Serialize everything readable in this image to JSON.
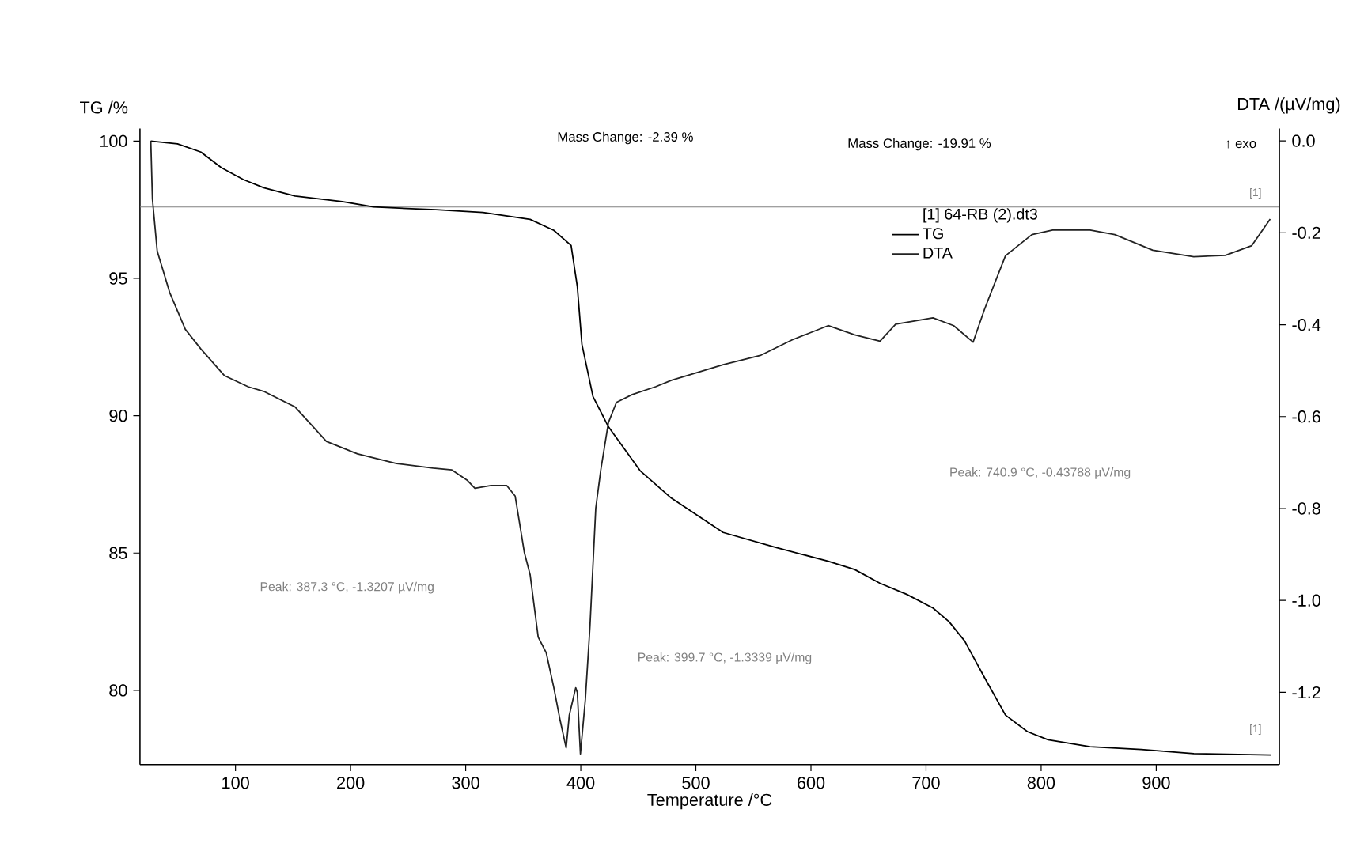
{
  "chart_data": {
    "type": "line",
    "xlabel": "Temperature /°C",
    "ylabel": "TG /%",
    "y2label": "DTA /(µV/mg)",
    "legend_title": "[1] 64-RB (2).dt3",
    "xlim": [
      17,
      1007
    ],
    "ylim": [
      77.3,
      100.46
    ],
    "y2lim": [
      -1.357,
      0.027
    ],
    "xticks": [
      100,
      200,
      300,
      400,
      500,
      600,
      700,
      800,
      900
    ],
    "yticks": [
      80,
      85,
      90,
      95,
      100
    ],
    "y2ticks": [
      {
        "value": 0,
        "label": "0.0"
      },
      {
        "value": -0.2,
        "label": "-0.2"
      },
      {
        "value": -0.4,
        "label": "-0.4"
      },
      {
        "value": -0.6,
        "label": "-0.6"
      },
      {
        "value": -0.8,
        "label": "-0.8"
      },
      {
        "value": -1.0,
        "label": "-1.0"
      },
      {
        "value": -1.2,
        "label": "-1.2"
      }
    ],
    "series": [
      {
        "name": "TG",
        "color": "#000000",
        "x": [
          26.4,
          49.6,
          70,
          87.7,
          106.8,
          124.5,
          151.8,
          192.6,
          220,
          274,
          315,
          356,
          376.6,
          391.6,
          397,
          401,
          410.6,
          424,
          451.5,
          478.7,
          523.7,
          570,
          615,
          638,
          660,
          683,
          706,
          720,
          733.5,
          751,
          769,
          788,
          806,
          842.5,
          887,
          932.6,
          1000
        ],
        "values": [
          100,
          99.9,
          99.6,
          99.03,
          98.6,
          98.3,
          98.0,
          97.8,
          97.6,
          97.5,
          97.4,
          97.15,
          96.75,
          96.2,
          94.7,
          92.6,
          90.7,
          89.6,
          88.0,
          87.0,
          85.75,
          85.2,
          84.7,
          84.4,
          83.9,
          83.5,
          83.0,
          82.5,
          81.8,
          80.45,
          79.1,
          78.5,
          78.2,
          77.95,
          77.85,
          77.7,
          77.65
        ]
      },
      {
        "name": "DTA",
        "color": "#222222",
        "axis": "y2",
        "x": [
          26.4,
          27.8,
          32,
          42.8,
          56.4,
          70,
          90.5,
          111,
          124.5,
          151.8,
          179,
          206,
          240,
          271.7,
          288,
          301.6,
          308,
          322,
          335.7,
          343,
          351,
          356,
          363,
          370,
          376.6,
          382,
          387.3,
          390,
          395.6,
          397,
          399.7,
          404,
          408,
          413,
          417.4,
          424,
          431,
          444.7,
          465,
          478.7,
          523.7,
          556,
          583.6,
          615,
          638,
          660,
          673.6,
          706,
          724,
          740.9,
          751,
          769,
          792,
          810,
          842.5,
          864,
          897,
          932.6,
          960,
          983,
          999
        ],
        "values": [
          0,
          -0.126,
          -0.24,
          -0.33,
          -0.41,
          -0.453,
          -0.511,
          -0.535,
          -0.545,
          -0.579,
          -0.654,
          -0.681,
          -0.702,
          -0.712,
          -0.716,
          -0.739,
          -0.756,
          -0.75,
          -0.75,
          -0.773,
          -0.896,
          -0.944,
          -1.08,
          -1.114,
          -1.19,
          -1.26,
          -1.3207,
          -1.25,
          -1.19,
          -1.2,
          -1.3339,
          -1.215,
          -1.056,
          -0.8,
          -0.716,
          -0.613,
          -0.569,
          -0.552,
          -0.535,
          -0.521,
          -0.487,
          -0.467,
          -0.433,
          -0.402,
          -0.422,
          -0.436,
          -0.399,
          -0.385,
          -0.402,
          -0.43788,
          -0.365,
          -0.25,
          -0.204,
          -0.194,
          -0.194,
          -0.204,
          -0.238,
          -0.252,
          -0.249,
          -0.228,
          -0.17
        ]
      }
    ],
    "ref_lines": [
      {
        "axis": "y",
        "value": 97.6,
        "color": "#808080"
      }
    ],
    "annotations": [
      "Mass Change: -2.39 %",
      "Mass Change: -19.91 %",
      "↑ exo",
      "Peak: 387.3 °C, -1.3207 µV/mg",
      "Peak: 399.7 °C, -1.3339 µV/mg",
      "Peak: 740.9 °C, -0.43788 µV/mg",
      "[1]",
      "[1]"
    ],
    "legend": "top right",
    "grid": false,
    "marker": "none",
    "line_style": "solid"
  }
}
